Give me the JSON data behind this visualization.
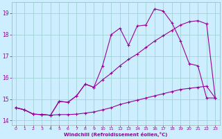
{
  "xlabel": "Windchill (Refroidissement éolien,°C)",
  "bg_color": "#cceeff",
  "grid_color": "#99cccc",
  "line_color": "#990099",
  "xlim": [
    -0.5,
    23.5
  ],
  "ylim": [
    13.8,
    19.5
  ],
  "xticks": [
    0,
    1,
    2,
    3,
    4,
    5,
    6,
    7,
    8,
    9,
    10,
    11,
    12,
    13,
    14,
    15,
    16,
    17,
    18,
    19,
    20,
    21,
    22,
    23
  ],
  "yticks": [
    14,
    15,
    16,
    17,
    18,
    19
  ],
  "curve1_x": [
    0,
    1,
    2,
    3,
    4,
    5,
    6,
    7,
    8,
    9,
    10,
    11,
    12,
    13,
    14,
    15,
    16,
    17,
    18,
    19,
    20,
    21,
    22,
    23
  ],
  "curve1_y": [
    14.6,
    14.5,
    14.3,
    14.28,
    14.25,
    14.28,
    14.28,
    14.3,
    14.35,
    14.4,
    14.5,
    14.6,
    14.75,
    14.85,
    14.95,
    15.05,
    15.15,
    15.25,
    15.35,
    15.45,
    15.5,
    15.55,
    15.6,
    15.05
  ],
  "curve2_x": [
    0,
    1,
    2,
    3,
    4,
    5,
    6,
    7,
    8,
    9,
    10,
    11,
    12,
    13,
    14,
    15,
    16,
    17,
    18,
    19,
    20,
    21,
    22,
    23
  ],
  "curve2_y": [
    14.6,
    14.5,
    14.3,
    14.28,
    14.25,
    14.9,
    14.85,
    15.15,
    15.7,
    15.55,
    16.55,
    18.0,
    18.3,
    17.5,
    18.4,
    18.45,
    19.2,
    19.1,
    18.55,
    17.7,
    16.65,
    16.55,
    15.05,
    15.05
  ],
  "curve3_x": [
    0,
    1,
    2,
    3,
    4,
    5,
    6,
    7,
    8,
    9,
    10,
    11,
    12,
    13,
    14,
    15,
    16,
    17,
    18,
    19,
    20,
    21,
    22,
    23
  ],
  "curve3_y": [
    14.6,
    14.5,
    14.3,
    14.28,
    14.25,
    14.9,
    14.85,
    15.15,
    15.7,
    15.55,
    15.9,
    16.2,
    16.55,
    16.85,
    17.1,
    17.4,
    17.7,
    17.95,
    18.2,
    18.45,
    18.6,
    18.65,
    18.5,
    15.05
  ]
}
